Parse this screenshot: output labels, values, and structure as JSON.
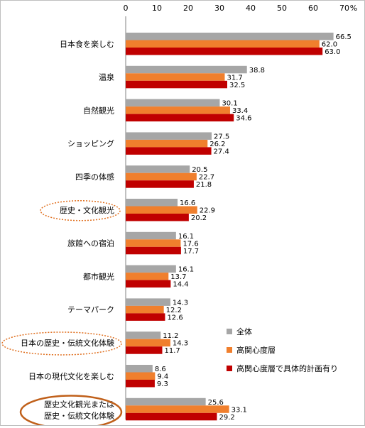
{
  "chart_data": {
    "type": "bar",
    "orientation": "horizontal",
    "unit_label": "%",
    "xlim": [
      0,
      70
    ],
    "x_ticks": [
      "0",
      "10",
      "20",
      "30",
      "40",
      "50",
      "60",
      "70"
    ],
    "grid": false,
    "legend_position": "bottom-right",
    "categories": [
      [
        "日本食を楽しむ"
      ],
      [
        "温泉"
      ],
      [
        "自然観光"
      ],
      [
        "ショッピング"
      ],
      [
        "四季の体感"
      ],
      [
        "歴史・文化観光"
      ],
      [
        "旅館への宿泊"
      ],
      [
        "都市観光"
      ],
      [
        "テーマパーク"
      ],
      [
        "日本の歴史・伝統文化体験"
      ],
      [
        "日本の現代文化を楽しむ"
      ],
      [
        "歴史文化観光または",
        "歴史・伝統文化体験"
      ]
    ],
    "highlighted_categories": [
      5,
      9,
      11
    ],
    "series": [
      {
        "name": "全体",
        "color": "#a6a6a6",
        "values": [
          66.5,
          38.8,
          30.1,
          27.5,
          20.5,
          16.6,
          16.1,
          16.1,
          14.3,
          11.2,
          8.6,
          25.6
        ],
        "labels": [
          "66.5",
          "38.8",
          "30.1",
          "27.5",
          "20.5",
          "16.6",
          "16.1",
          "16.1",
          "14.3",
          "11.2",
          "8.6",
          "25.6"
        ]
      },
      {
        "name": "高関心度層",
        "color": "#f07f2d",
        "values": [
          62.0,
          31.7,
          33.4,
          26.2,
          22.7,
          22.9,
          17.6,
          13.7,
          12.2,
          14.3,
          9.4,
          33.1
        ],
        "labels": [
          "62.0",
          "31.7",
          "33.4",
          "26.2",
          "22.7",
          "22.9",
          "17.6",
          "13.7",
          "12.2",
          "14.3",
          "9.4",
          "33.1"
        ]
      },
      {
        "name": "高関心度層で具体的計画有り",
        "color": "#c00000",
        "values": [
          63.0,
          32.5,
          34.6,
          27.4,
          21.8,
          20.2,
          17.7,
          14.4,
          12.6,
          11.7,
          9.3,
          29.2
        ],
        "labels": [
          "63.0",
          "32.5",
          "34.6",
          "27.4",
          "21.8",
          "20.2",
          "17.7",
          "14.4",
          "12.6",
          "11.7",
          "9.3",
          "29.2"
        ]
      }
    ]
  }
}
